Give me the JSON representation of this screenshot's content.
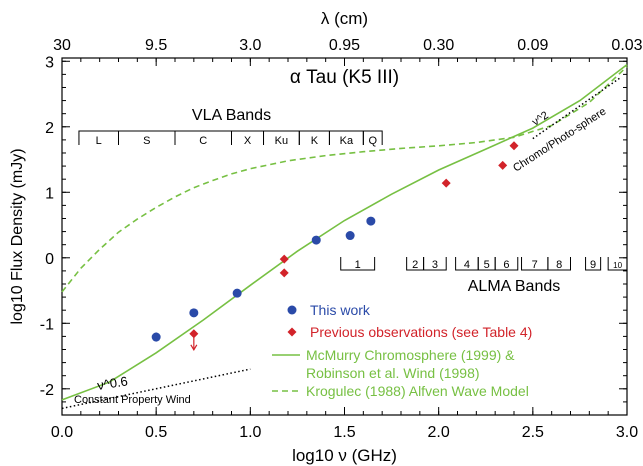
{
  "chart_data": {
    "type": "scatter",
    "title": "α Tau (K5 III)",
    "xlabel": "log10 ν (GHz)",
    "ylabel": "log10 Flux Density (mJy)",
    "top_xlabel": "λ (cm)",
    "xlim": [
      0.0,
      3.0
    ],
    "ylim": [
      -2.4,
      3.05
    ],
    "x_ticks": [
      "0.0",
      "0.5",
      "1.0",
      "1.5",
      "2.0",
      "2.5",
      "3.0"
    ],
    "y_ticks": [
      "-2",
      "-1",
      "0",
      "1",
      "2",
      "3"
    ],
    "top_ticks": [
      {
        "x": 0.0,
        "label": "30"
      },
      {
        "x": 0.5,
        "label": "9.5"
      },
      {
        "x": 1.0,
        "label": "3.0"
      },
      {
        "x": 1.5,
        "label": "0.95"
      },
      {
        "x": 2.0,
        "label": "0.30"
      },
      {
        "x": 2.5,
        "label": "0.09"
      },
      {
        "x": 3.0,
        "label": "0.03"
      }
    ],
    "series": [
      {
        "name": "This work",
        "color": "#2a4aa8",
        "marker": "circle",
        "points": [
          {
            "x": 0.5,
            "y": -1.21,
            "err": 0.07
          },
          {
            "x": 0.7,
            "y": -0.84,
            "err": 0
          },
          {
            "x": 0.93,
            "y": -0.54,
            "err": 0
          },
          {
            "x": 1.35,
            "y": 0.27,
            "err": 0
          },
          {
            "x": 1.53,
            "y": 0.34,
            "err": 0
          },
          {
            "x": 1.64,
            "y": 0.56,
            "err": 0
          }
        ]
      },
      {
        "name": "Previous observations (see Table 4)",
        "color": "#d2232a",
        "marker": "diamond",
        "points": [
          {
            "x": 0.7,
            "y": -1.16,
            "upper_limit": true
          },
          {
            "x": 1.18,
            "y": -0.02
          },
          {
            "x": 1.18,
            "y": -0.23
          },
          {
            "x": 2.04,
            "y": 1.14
          },
          {
            "x": 2.34,
            "y": 1.41,
            "err": 0.05
          },
          {
            "x": 2.4,
            "y": 1.71
          }
        ]
      }
    ],
    "curves": [
      {
        "name": "McMurry Chromosphere (1999) & Robinson et al. Wind (1998)",
        "color": "#77c043",
        "dash": "solid",
        "points": [
          [
            0.0,
            -2.17
          ],
          [
            0.25,
            -1.9
          ],
          [
            0.5,
            -1.45
          ],
          [
            0.75,
            -0.95
          ],
          [
            1.0,
            -0.42
          ],
          [
            1.25,
            0.1
          ],
          [
            1.5,
            0.57
          ],
          [
            1.75,
            0.97
          ],
          [
            2.0,
            1.34
          ],
          [
            2.25,
            1.66
          ],
          [
            2.5,
            1.98
          ],
          [
            2.75,
            2.4
          ],
          [
            3.0,
            2.95
          ]
        ]
      },
      {
        "name": "Krogulec (1988) Alfven Wave Model",
        "color": "#77c043",
        "dash": "dashed",
        "points": [
          [
            0.0,
            -0.52
          ],
          [
            0.1,
            -0.16
          ],
          [
            0.2,
            0.13
          ],
          [
            0.3,
            0.39
          ],
          [
            0.4,
            0.59
          ],
          [
            0.5,
            0.77
          ],
          [
            0.6,
            0.93
          ],
          [
            0.7,
            1.07
          ],
          [
            0.8,
            1.18
          ],
          [
            0.9,
            1.28
          ],
          [
            1.0,
            1.36
          ],
          [
            1.2,
            1.48
          ],
          [
            1.4,
            1.56
          ],
          [
            1.6,
            1.62
          ],
          [
            1.8,
            1.67
          ],
          [
            2.0,
            1.71
          ],
          [
            2.2,
            1.76
          ],
          [
            2.4,
            1.84
          ],
          [
            2.6,
            2.02
          ],
          [
            2.8,
            2.37
          ],
          [
            3.0,
            2.92
          ]
        ]
      }
    ],
    "reference_lines": [
      {
        "label": "ν^0.6",
        "name": "Constant Property Wind",
        "points": [
          [
            0.0,
            -2.3
          ],
          [
            1.0,
            -1.7
          ]
        ]
      },
      {
        "label": "ν^2",
        "name": "Chromo/Photo-sphere",
        "points": [
          [
            2.5,
            1.82
          ],
          [
            2.97,
            2.76
          ]
        ]
      }
    ],
    "vla_bands": {
      "title": "VLA Bands",
      "bands": [
        {
          "label": "L",
          "x0": 0.09,
          "x1": 0.3
        },
        {
          "label": "S",
          "x0": 0.3,
          "x1": 0.6
        },
        {
          "label": "C",
          "x0": 0.6,
          "x1": 0.9
        },
        {
          "label": "X",
          "x0": 0.9,
          "x1": 1.07
        },
        {
          "label": "Ku",
          "x0": 1.07,
          "x1": 1.26
        },
        {
          "label": "K",
          "x0": 1.26,
          "x1": 1.42
        },
        {
          "label": "Ka",
          "x0": 1.42,
          "x1": 1.6
        },
        {
          "label": "Q",
          "x0": 1.6,
          "x1": 1.7
        }
      ]
    },
    "alma_bands": {
      "title": "ALMA Bands",
      "bands": [
        {
          "label": "1",
          "x0": 1.48,
          "x1": 1.66
        },
        {
          "label": "2",
          "x0": 1.83,
          "x1": 1.92
        },
        {
          "label": "3",
          "x0": 1.92,
          "x1": 2.04
        },
        {
          "label": "4",
          "x0": 2.09,
          "x1": 2.21
        },
        {
          "label": "5",
          "x0": 2.21,
          "x1": 2.3
        },
        {
          "label": "6",
          "x0": 2.3,
          "x1": 2.42
        },
        {
          "label": "7",
          "x0": 2.44,
          "x1": 2.58
        },
        {
          "label": "8",
          "x0": 2.58,
          "x1": 2.7
        },
        {
          "label": "9",
          "x0": 2.78,
          "x1": 2.86
        },
        {
          "label": "10",
          "x0": 2.9,
          "x1": 3.0
        }
      ]
    },
    "legend": {
      "position": "bottom-right",
      "entries": [
        {
          "label": "This work",
          "color": "#2a4aa8",
          "marker": "circle"
        },
        {
          "label": "Previous observations (see Table 4)",
          "color": "#d2232a",
          "marker": "diamond"
        },
        {
          "label": "McMurry Chromosphere (1999) &",
          "label2": "Robinson et al. Wind (1998)",
          "color": "#77c043",
          "marker": "solid-line"
        },
        {
          "label": "Krogulec (1988) Alfven Wave Model",
          "color": "#77c043",
          "marker": "dashed-line"
        }
      ]
    }
  }
}
